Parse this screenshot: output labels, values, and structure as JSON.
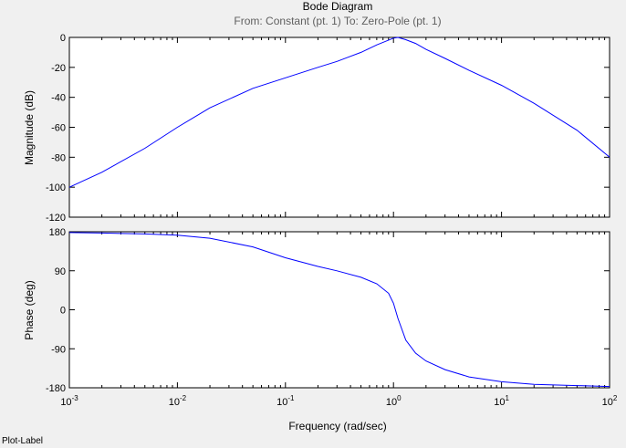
{
  "status_text": "Plot-Label",
  "chart_data": [
    {
      "type": "line",
      "title": "Bode Diagram",
      "subtitle": "From: Constant (pt. 1)  To: Zero-Pole (pt. 1)",
      "ylabel": "Magnitude (dB)",
      "xlabel": "",
      "xscale": "log",
      "xlim": [
        0.001,
        100
      ],
      "ylim": [
        -120,
        0
      ],
      "yticks": [
        0,
        -20,
        -40,
        -60,
        -80,
        -100,
        -120
      ],
      "line_color": "#0000ff",
      "series": [
        {
          "x": [
            0.001,
            0.002,
            0.005,
            0.01,
            0.02,
            0.05,
            0.1,
            0.2,
            0.3,
            0.5,
            0.7,
            1.0,
            1.1,
            1.3,
            1.6,
            2,
            3,
            5,
            10,
            20,
            50,
            100
          ],
          "values": [
            -100,
            -90,
            -74,
            -60,
            -47,
            -34,
            -27,
            -20,
            -16,
            -10,
            -5,
            -0.5,
            0,
            -1.5,
            -4,
            -8,
            -14,
            -22,
            -32,
            -44,
            -62,
            -80
          ]
        }
      ]
    },
    {
      "type": "line",
      "ylabel": "Phase (deg)",
      "xlabel": "Frequency  (rad/sec)",
      "xscale": "log",
      "xlim": [
        0.001,
        100
      ],
      "ylim": [
        -180,
        180
      ],
      "yticks": [
        180,
        90,
        0,
        -90,
        -180
      ],
      "xtick_labels": [
        "10-3",
        "10-2",
        "10-1",
        "100",
        "101",
        "102"
      ],
      "line_color": "#0000ff",
      "series": [
        {
          "x": [
            0.001,
            0.002,
            0.005,
            0.01,
            0.02,
            0.05,
            0.1,
            0.2,
            0.3,
            0.5,
            0.7,
            0.9,
            1.0,
            1.1,
            1.3,
            1.6,
            2,
            3,
            5,
            10,
            20,
            50,
            100
          ],
          "values": [
            178,
            177,
            175,
            172,
            165,
            145,
            120,
            100,
            90,
            75,
            60,
            38,
            15,
            -20,
            -70,
            -100,
            -118,
            -138,
            -155,
            -166,
            -172,
            -175,
            -177
          ]
        }
      ]
    }
  ]
}
